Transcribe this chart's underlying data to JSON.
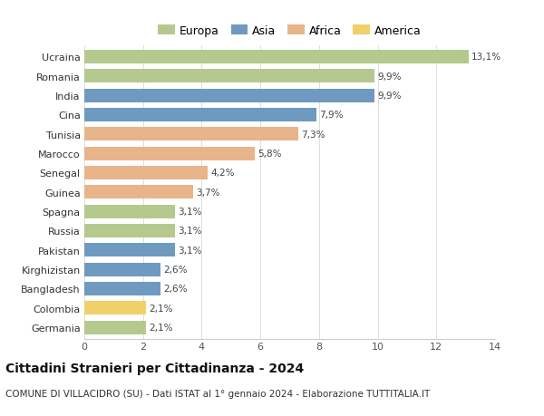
{
  "countries": [
    "Ucraina",
    "Romania",
    "India",
    "Cina",
    "Tunisia",
    "Marocco",
    "Senegal",
    "Guinea",
    "Spagna",
    "Russia",
    "Pakistan",
    "Kirghizistan",
    "Bangladesh",
    "Colombia",
    "Germania"
  ],
  "values": [
    13.1,
    9.9,
    9.9,
    7.9,
    7.3,
    5.8,
    4.2,
    3.7,
    3.1,
    3.1,
    3.1,
    2.6,
    2.6,
    2.1,
    2.1
  ],
  "continents": [
    "Europa",
    "Europa",
    "Asia",
    "Asia",
    "Africa",
    "Africa",
    "Africa",
    "Africa",
    "Europa",
    "Europa",
    "Asia",
    "Asia",
    "Asia",
    "America",
    "Europa"
  ],
  "continent_colors": {
    "Europa": "#b5c98e",
    "Asia": "#6f9abf",
    "Africa": "#e8b48a",
    "America": "#f0d06a"
  },
  "legend_order": [
    "Europa",
    "Asia",
    "Africa",
    "America"
  ],
  "title": "Cittadini Stranieri per Cittadinanza - 2024",
  "subtitle": "COMUNE DI VILLACIDRO (SU) - Dati ISTAT al 1° gennaio 2024 - Elaborazione TUTTITALIA.IT",
  "xlim": [
    0,
    14
  ],
  "xticks": [
    0,
    2,
    4,
    6,
    8,
    10,
    12,
    14
  ],
  "background_color": "#ffffff",
  "grid_color": "#dddddd",
  "bar_height": 0.7,
  "title_fontsize": 10,
  "subtitle_fontsize": 7.5,
  "label_fontsize": 7.5,
  "tick_fontsize": 8,
  "legend_fontsize": 9
}
